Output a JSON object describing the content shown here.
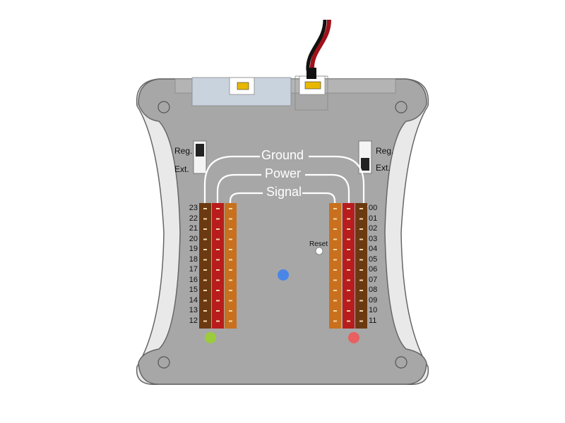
{
  "labels": {
    "ground": "Ground",
    "power": "Power",
    "signal": "Signal",
    "reset": "Reset",
    "left_switch_top": "Reg.",
    "left_switch_bottom": "Ext.",
    "right_switch_top": "Reg.",
    "right_switch_bottom": "Ext."
  },
  "left_channels": [
    "23",
    "22",
    "21",
    "20",
    "19",
    "18",
    "17",
    "16",
    "15",
    "14",
    "13",
    "12"
  ],
  "right_channels": [
    "00",
    "01",
    "02",
    "03",
    "04",
    "05",
    "06",
    "07",
    "08",
    "09",
    "10",
    "11"
  ],
  "colors": {
    "board": "#a7a7a7",
    "board_shadow": "#e9e9e9",
    "ground_pin": "#6b3a12",
    "power_pin": "#b81c1c",
    "signal_pin": "#c8701d",
    "led_blue": "#4a86e8",
    "led_green": "#9ccc3a",
    "led_red": "#e86060",
    "cable_red": "#a0111a",
    "cable_black": "#111111"
  },
  "icons": [
    "switch-left-icon",
    "switch-right-icon",
    "led-green-icon",
    "led-blue-icon",
    "led-red-icon",
    "reset-button-icon",
    "mounting-hole-icon"
  ]
}
